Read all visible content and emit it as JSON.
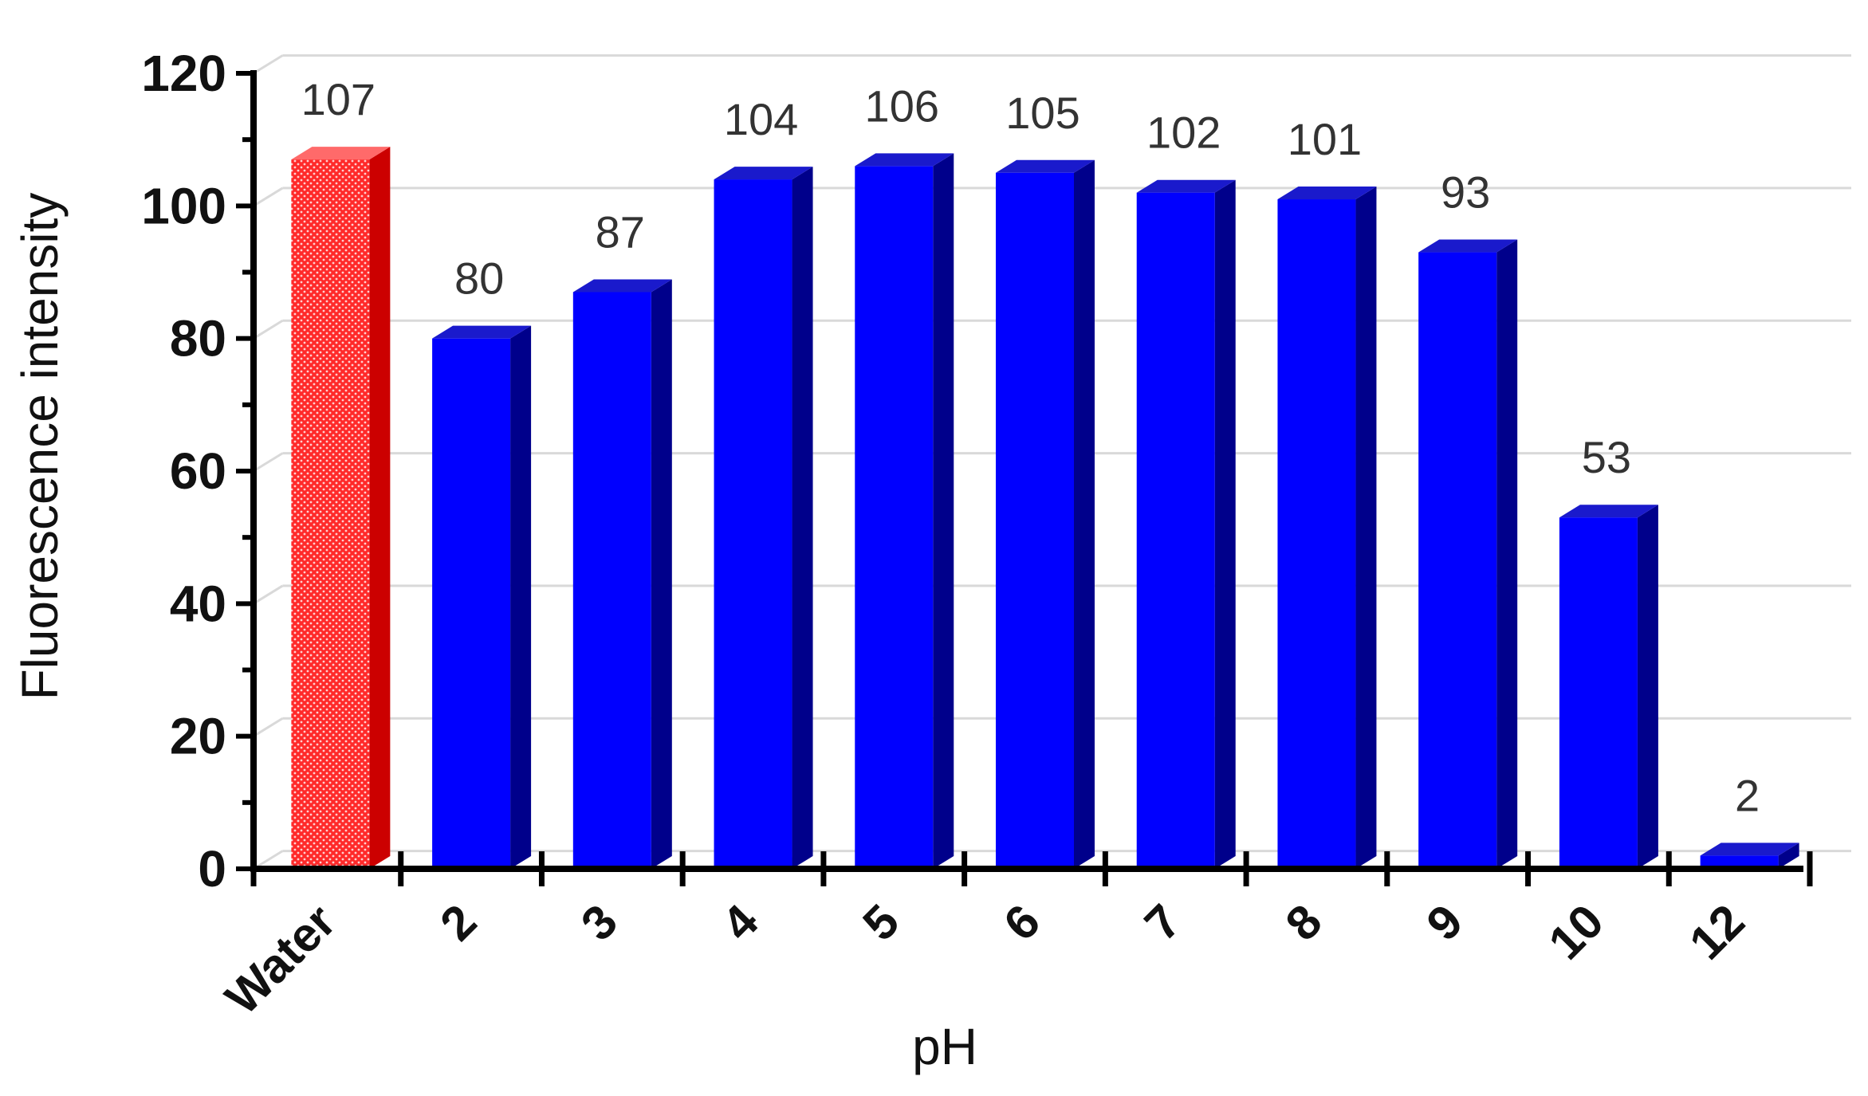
{
  "chart_data": {
    "type": "bar",
    "style": "3d-bar",
    "categories": [
      "Water",
      "2",
      "3",
      "4",
      "5",
      "6",
      "7",
      "8",
      "9",
      "10",
      "12"
    ],
    "values": [
      107,
      80,
      87,
      104,
      106,
      105,
      102,
      101,
      93,
      53,
      2
    ],
    "data_labels": [
      "107",
      "80",
      "87",
      "104",
      "106",
      "105",
      "102",
      "101",
      "93",
      "53",
      "2"
    ],
    "xlabel": "pH",
    "ylabel": "Fluorescence intensity",
    "ylim": [
      0,
      120
    ],
    "yticks": [
      "0",
      "20",
      "40",
      "60",
      "80",
      "100",
      "120"
    ],
    "grid": true,
    "legend": "none",
    "colors": {
      "highlight_front": "#ff2a2a",
      "highlight_side": "#cc0000",
      "highlight_top": "#ff6a6a",
      "bar_front": "#0000ff",
      "bar_side": "#00008b",
      "bar_top": "#1a1acc",
      "grid": "#d9d9d9",
      "axis": "#000000"
    },
    "highlight_category": "Water"
  }
}
